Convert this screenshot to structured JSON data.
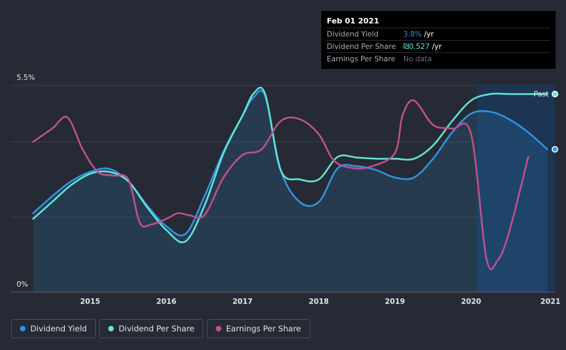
{
  "colors": {
    "background": "#252a35",
    "dividend_yield": "#2f95e3",
    "dividend_per_share": "#62e5d6",
    "earnings_per_share": "#c24f91",
    "past_band": "#193a5e"
  },
  "tooltip": {
    "date": "Feb 01 2021",
    "rows": [
      {
        "name": "Dividend Yield",
        "value": "3.8%",
        "suffix": " /yr",
        "value_color": "#2f95e3"
      },
      {
        "name": "Dividend Per Share",
        "value": "₪0.527",
        "suffix": " /yr",
        "value_color": "#62e5d6"
      },
      {
        "name": "Earnings Per Share",
        "value": "No data",
        "suffix": "",
        "value_color": "#6b717c"
      }
    ]
  },
  "past_label": "Past",
  "legend": [
    {
      "label": "Dividend Yield",
      "icon": "dot-icon",
      "color": "#2f95e3"
    },
    {
      "label": "Dividend Per Share",
      "icon": "dot-icon",
      "color": "#62e5d6"
    },
    {
      "label": "Earnings Per Share",
      "icon": "dot-icon",
      "color": "#c24f91"
    }
  ],
  "chart_data": {
    "type": "line",
    "title": "",
    "xlabel": "",
    "ylabel": "",
    "y_tick_labels": [
      "5.5%",
      "0%"
    ],
    "ylim": [
      0,
      5.5
    ],
    "xlim": [
      2014.2,
      2021.0
    ],
    "x_tick_labels": [
      "2015",
      "2016",
      "2017",
      "2018",
      "2019",
      "2020",
      "2021"
    ],
    "x_tick_values": [
      2015,
      2016,
      2017,
      2018,
      2019,
      2020,
      2021
    ],
    "past_band_start": 2020.08,
    "series": [
      {
        "name": "Dividend Yield",
        "key": "dividend_yield",
        "filled": true,
        "x": [
          2014.25,
          2014.5,
          2014.75,
          2015.0,
          2015.25,
          2015.5,
          2015.75,
          2016.0,
          2016.25,
          2016.5,
          2016.75,
          2017.0,
          2017.15,
          2017.3,
          2017.5,
          2017.75,
          2018.0,
          2018.25,
          2018.5,
          2018.75,
          2019.0,
          2019.25,
          2019.5,
          2019.75,
          2020.0,
          2020.25,
          2020.5,
          2020.75,
          2021.0
        ],
        "values": [
          2.1,
          2.55,
          2.95,
          3.2,
          3.28,
          2.95,
          2.3,
          1.75,
          1.55,
          2.55,
          3.75,
          4.7,
          5.2,
          5.2,
          3.25,
          2.4,
          2.4,
          3.3,
          3.35,
          3.25,
          3.05,
          3.05,
          3.55,
          4.25,
          4.75,
          4.8,
          4.6,
          4.25,
          3.8
        ]
      },
      {
        "name": "Dividend Per Share",
        "key": "dividend_per_share",
        "filled": false,
        "x": [
          2014.25,
          2014.5,
          2014.75,
          2015.0,
          2015.25,
          2015.5,
          2015.75,
          2016.0,
          2016.25,
          2016.5,
          2016.75,
          2017.0,
          2017.15,
          2017.3,
          2017.5,
          2017.75,
          2018.0,
          2018.25,
          2018.5,
          2018.75,
          2019.0,
          2019.25,
          2019.5,
          2019.75,
          2020.0,
          2020.25,
          2020.5,
          2020.75,
          2021.0
        ],
        "values": [
          1.95,
          2.4,
          2.85,
          3.15,
          3.2,
          2.95,
          2.25,
          1.65,
          1.35,
          2.3,
          3.7,
          4.7,
          5.3,
          5.25,
          3.25,
          3.0,
          3.0,
          3.6,
          3.58,
          3.55,
          3.55,
          3.55,
          3.9,
          4.55,
          5.1,
          5.27,
          5.27,
          5.27,
          5.27
        ]
      },
      {
        "name": "Earnings Per Share",
        "key": "earnings_per_share",
        "filled": false,
        "x": [
          2014.25,
          2014.5,
          2014.7,
          2014.9,
          2015.1,
          2015.3,
          2015.5,
          2015.65,
          2015.8,
          2016.0,
          2016.15,
          2016.3,
          2016.5,
          2016.75,
          2017.0,
          2017.25,
          2017.5,
          2017.75,
          2018.0,
          2018.2,
          2018.45,
          2018.7,
          2019.0,
          2019.1,
          2019.25,
          2019.5,
          2019.75,
          2020.0,
          2020.2,
          2020.35,
          2020.5,
          2020.75
        ],
        "values": [
          4.0,
          4.35,
          4.65,
          3.8,
          3.2,
          3.1,
          3.0,
          1.85,
          1.8,
          1.95,
          2.1,
          2.05,
          2.05,
          3.05,
          3.65,
          3.8,
          4.55,
          4.6,
          4.2,
          3.5,
          3.3,
          3.35,
          3.7,
          4.7,
          5.1,
          4.45,
          4.35,
          4.2,
          0.9,
          0.85,
          1.6,
          3.6
        ]
      }
    ]
  }
}
